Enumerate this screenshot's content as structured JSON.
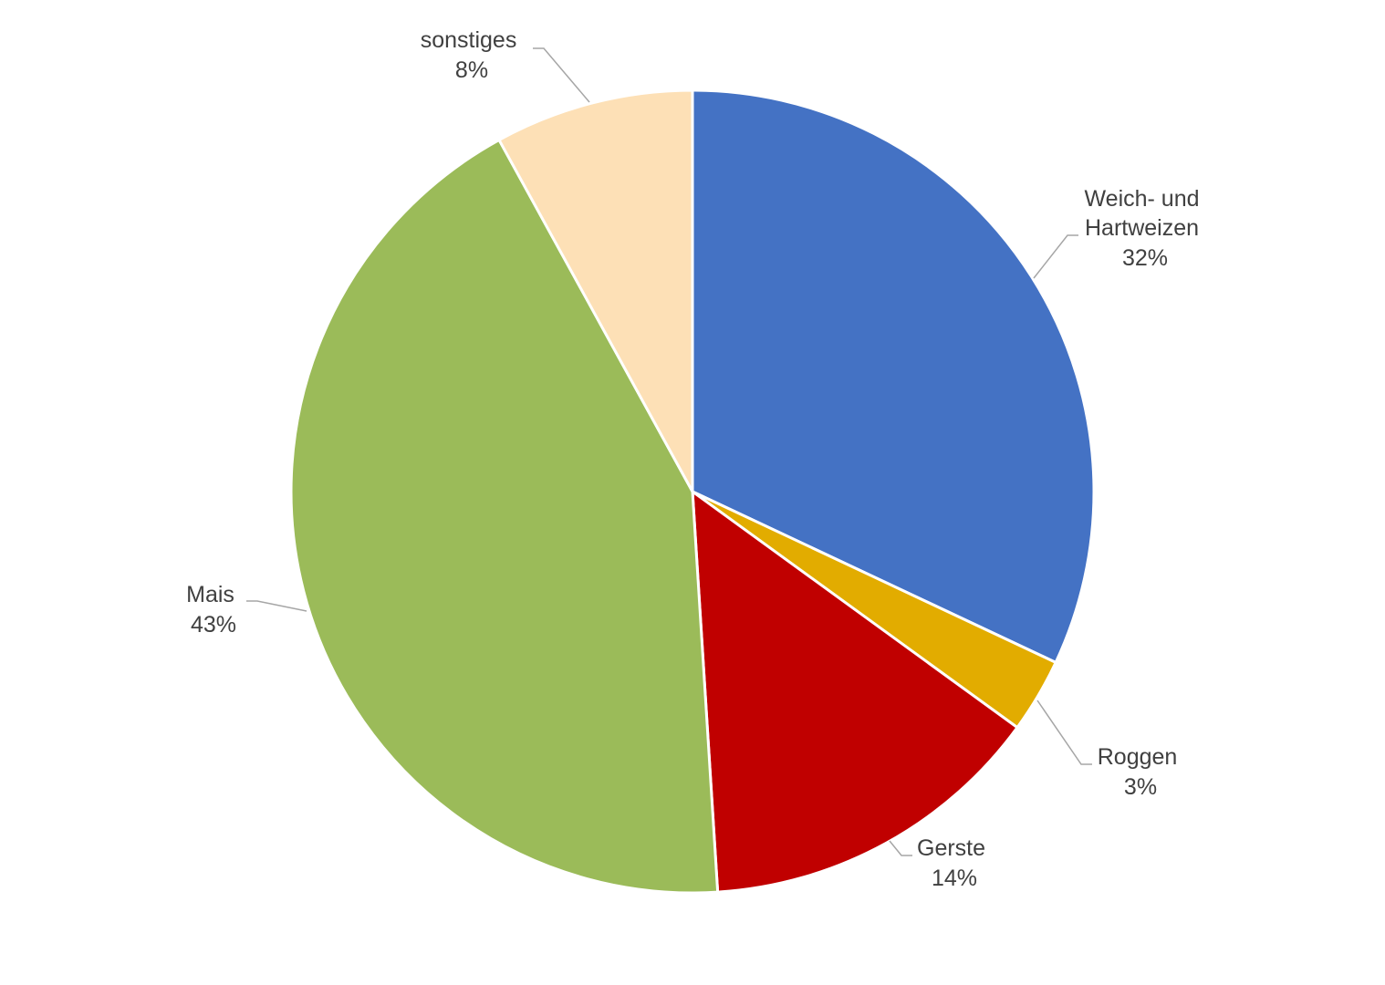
{
  "chart_data": {
    "type": "pie",
    "start_angle_deg": 0,
    "direction": "clockwise",
    "slices": [
      {
        "name_lines": [
          "Weich- und",
          "Hartweizen"
        ],
        "value": 32,
        "label": "32%",
        "color": "#4472C4"
      },
      {
        "name_lines": [
          "Roggen"
        ],
        "value": 3,
        "label": "3%",
        "color": "#E2AC00"
      },
      {
        "name_lines": [
          "Gerste"
        ],
        "value": 14,
        "label": "14%",
        "color": "#C00000"
      },
      {
        "name_lines": [
          "Mais"
        ],
        "value": 43,
        "label": "43%",
        "color": "#9BBB59"
      },
      {
        "name_lines": [
          "sonstiges"
        ],
        "value": 8,
        "label": "8%",
        "color": "#FDE0B6"
      }
    ]
  }
}
